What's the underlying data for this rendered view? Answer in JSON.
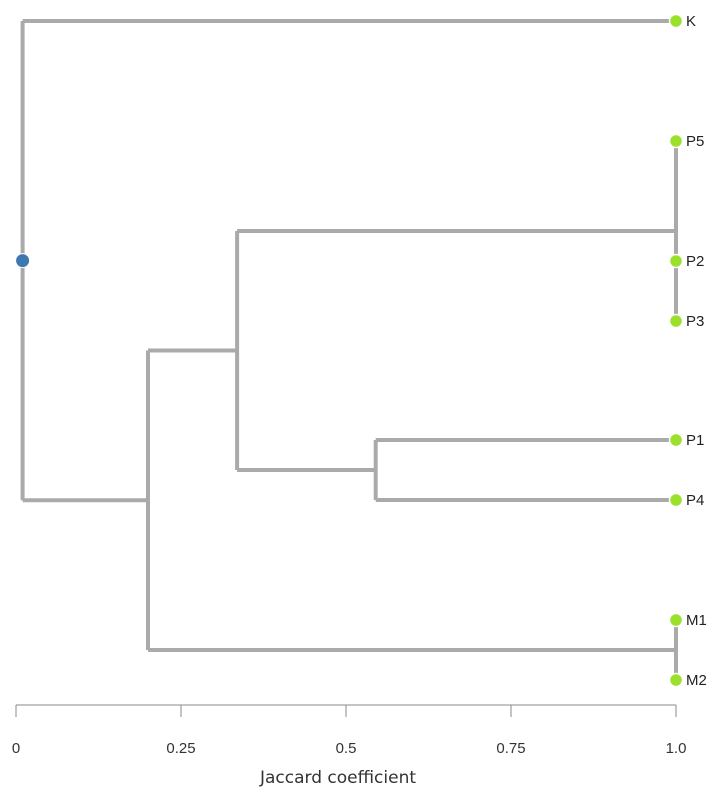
{
  "chart_data": {
    "type": "dendrogram",
    "title": "",
    "xlabel": "Jaccard coefficient",
    "xlim": [
      0,
      1.0
    ],
    "x_ticks": [
      {
        "value": 0,
        "label": "0"
      },
      {
        "value": 0.25,
        "label": "0.25"
      },
      {
        "value": 0.5,
        "label": "0.5"
      },
      {
        "value": 0.75,
        "label": "0.75"
      },
      {
        "value": 1.0,
        "label": "1.0"
      }
    ],
    "leaf_order": [
      "K",
      "P5",
      "P2",
      "P3",
      "P1",
      "P4",
      "M1",
      "M2"
    ],
    "tree": {
      "name": "root",
      "height": 0.01,
      "children": [
        {
          "name": "K"
        },
        {
          "name": "n1",
          "height": 0.2,
          "children": [
            {
              "name": "n2",
              "height": 0.335,
              "children": [
                {
                  "name": "n3",
                  "height": 1.0,
                  "children": [
                    {
                      "name": "P5"
                    },
                    {
                      "name": "P2"
                    },
                    {
                      "name": "P3"
                    }
                  ]
                },
                {
                  "name": "n4",
                  "height": 0.545,
                  "children": [
                    {
                      "name": "P1"
                    },
                    {
                      "name": "P4"
                    }
                  ]
                }
              ]
            },
            {
              "name": "n5",
              "height": 1.0,
              "children": [
                {
                  "name": "M1"
                },
                {
                  "name": "M2"
                }
              ]
            }
          ]
        }
      ]
    },
    "colors": {
      "link": "#aaaaaa",
      "leaf_node": "#9be12b",
      "root_node": "#3f78b0"
    }
  }
}
